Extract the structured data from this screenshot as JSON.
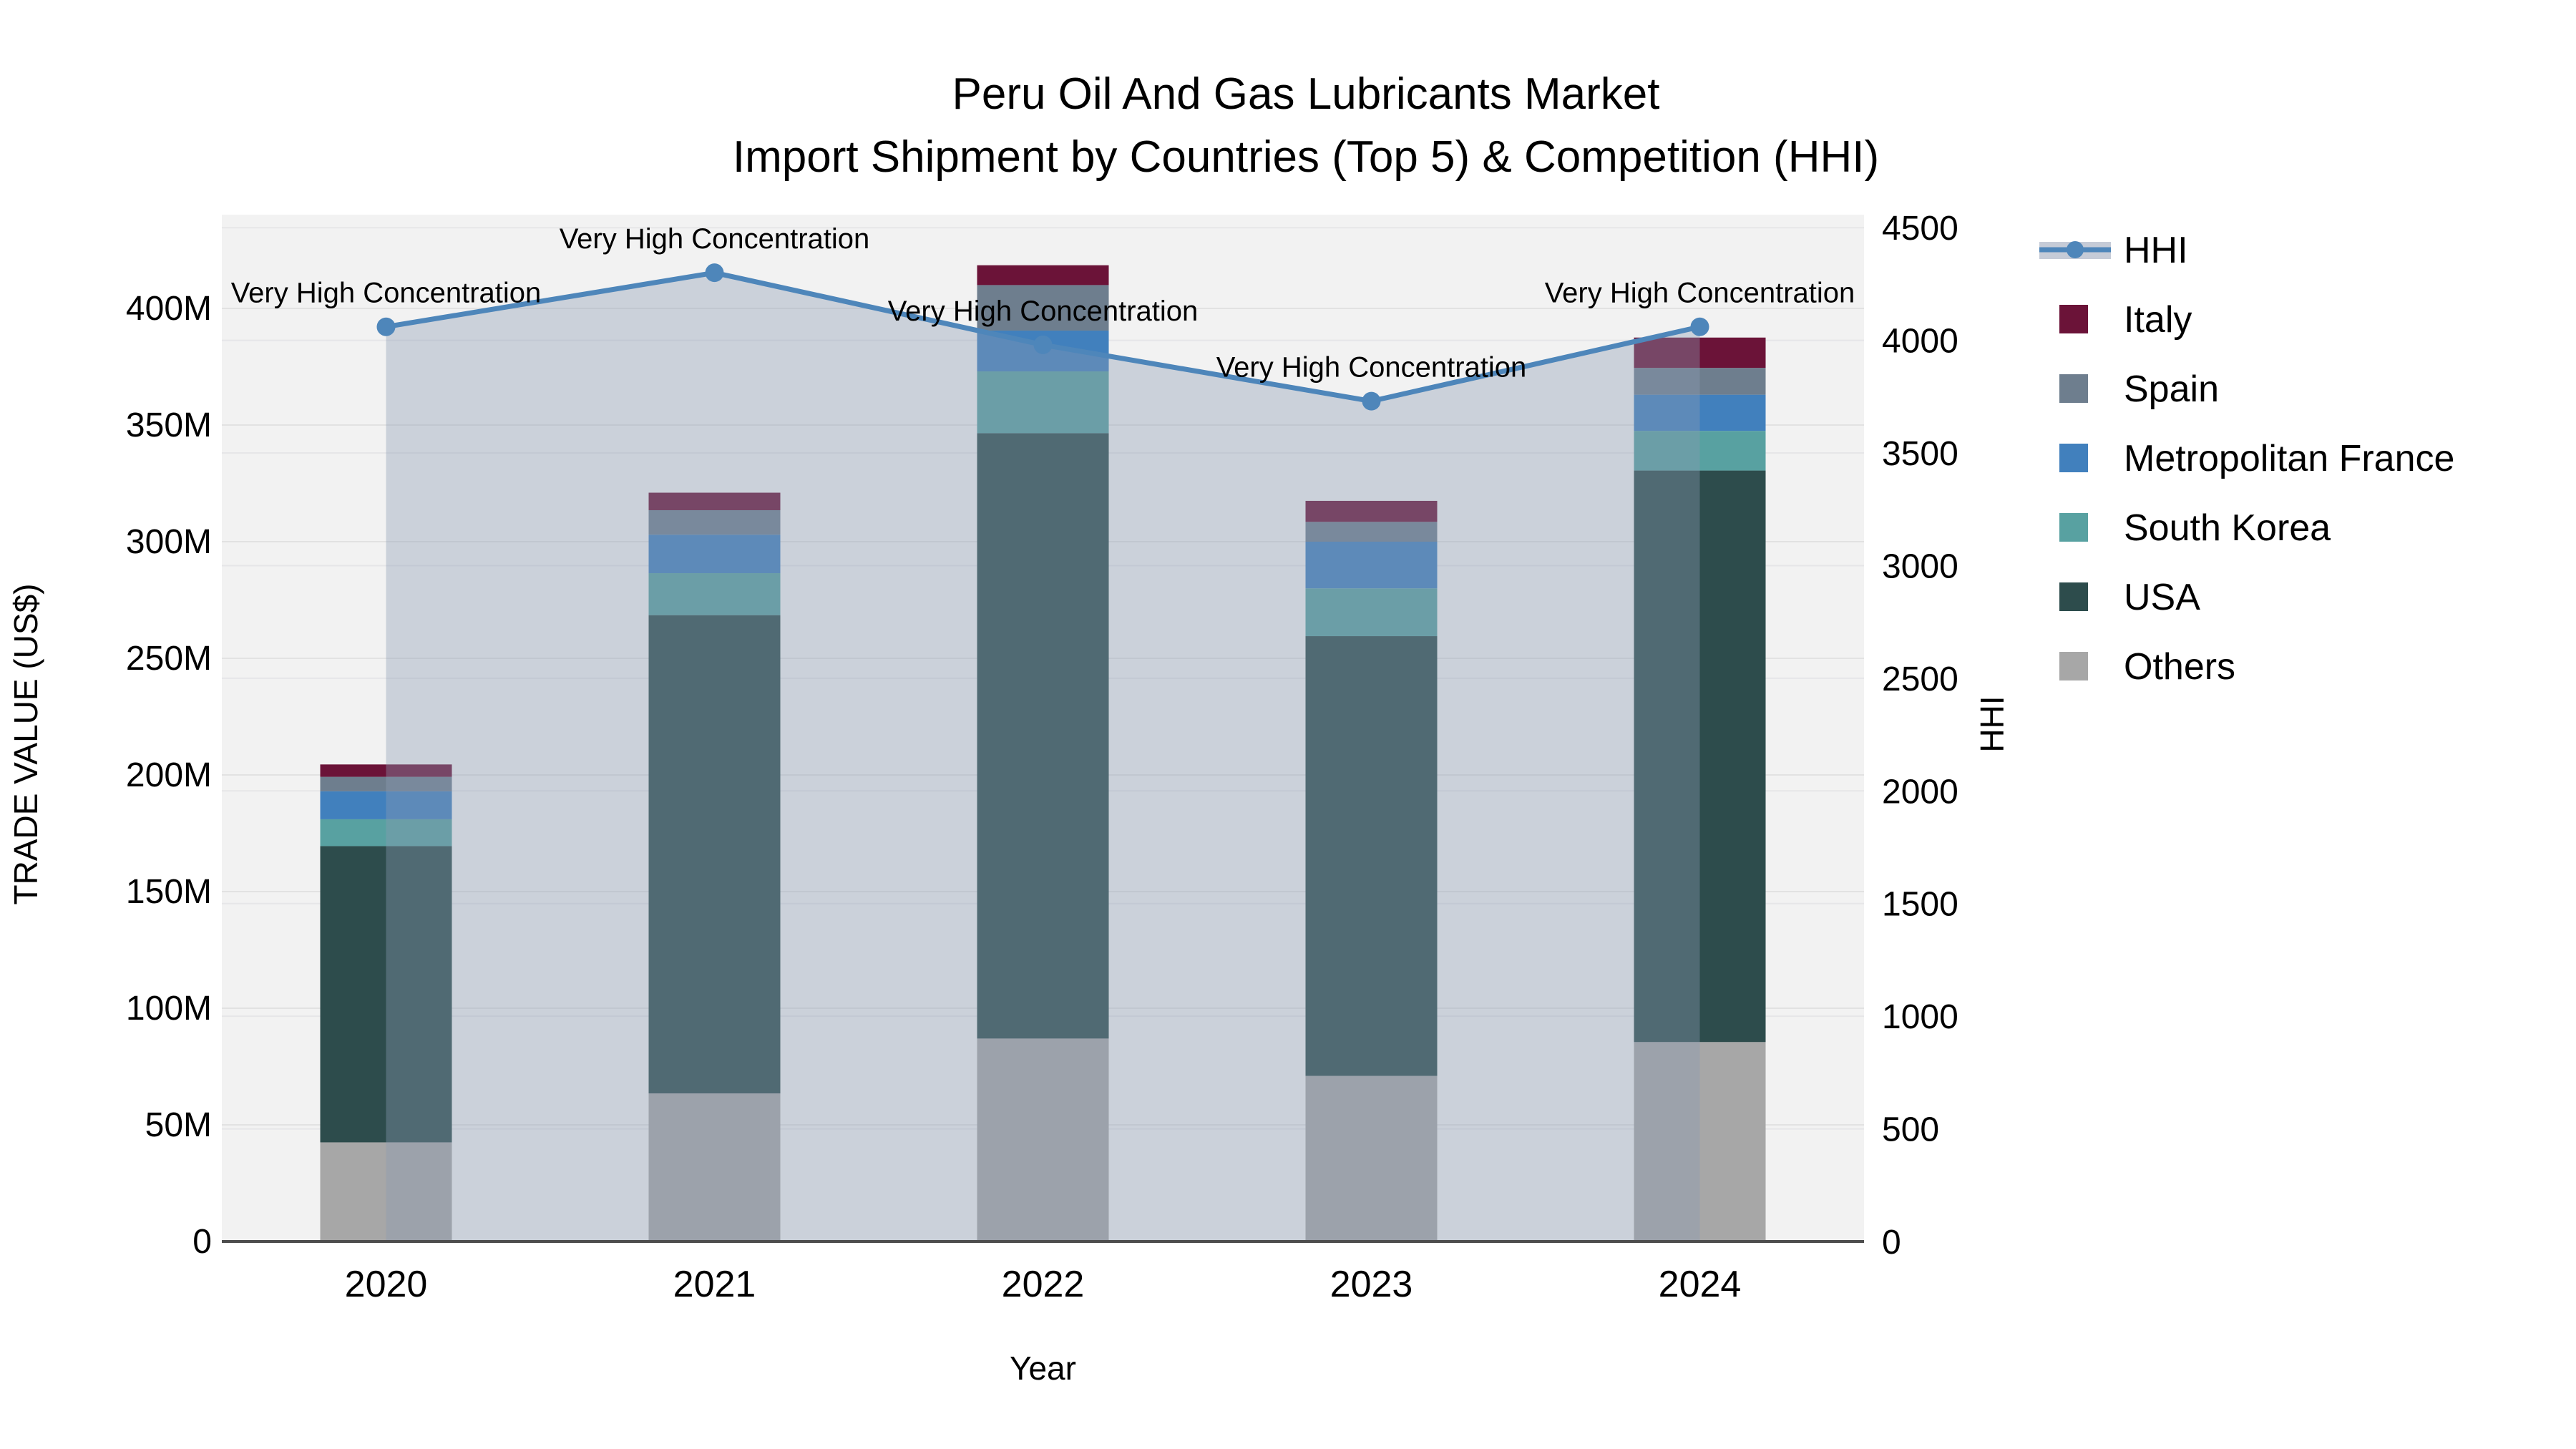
{
  "title": {
    "line1": "Peru Oil And Gas Lubricants Market",
    "line2": "Import Shipment by Countries (Top 5) & Competition (HHI)"
  },
  "axes": {
    "x_title": "Year",
    "y_left_title": "TRADE VALUE (US$)",
    "y_right_title": "HHI",
    "y_left_ticks": [
      {
        "value": 0,
        "label": "0"
      },
      {
        "value": 50,
        "label": "50M"
      },
      {
        "value": 100,
        "label": "100M"
      },
      {
        "value": 150,
        "label": "150M"
      },
      {
        "value": 200,
        "label": "200M"
      },
      {
        "value": 250,
        "label": "250M"
      },
      {
        "value": 300,
        "label": "300M"
      },
      {
        "value": 350,
        "label": "350M"
      },
      {
        "value": 400,
        "label": "400M"
      }
    ],
    "y_right_ticks": [
      0,
      500,
      1000,
      1500,
      2000,
      2500,
      3000,
      3500,
      4000,
      4500
    ]
  },
  "chart_data": {
    "type": "bar",
    "stacked": true,
    "title": "Peru Oil And Gas Lubricants Market — Import Shipment by Countries (Top 5) & Competition (HHI)",
    "xlabel": "Year",
    "ylabel": "TRADE VALUE (US$)",
    "ylabel_right": "HHI",
    "categories": [
      "2020",
      "2021",
      "2022",
      "2023",
      "2024"
    ],
    "y_left_unit": "millions US$",
    "y_left_range_M": [
      0,
      440
    ],
    "y_right_range": [
      0,
      4560
    ],
    "grid": true,
    "legend_position": "right",
    "series": [
      {
        "name": "Others",
        "color": "#a7a7a7",
        "values": [
          42.5,
          63.5,
          87.0,
          71.0,
          85.5
        ]
      },
      {
        "name": "USA",
        "color": "#2d4c4c",
        "values": [
          127.0,
          205.0,
          259.5,
          188.5,
          245.0
        ]
      },
      {
        "name": "South Korea",
        "color": "#58a1a1",
        "values": [
          11.5,
          18.0,
          26.5,
          20.5,
          17.0
        ]
      },
      {
        "name": "Metropolitan France",
        "color": "#4180bd",
        "values": [
          12.0,
          16.5,
          17.5,
          20.0,
          15.5
        ]
      },
      {
        "name": "Spain",
        "color": "#6e7e8e",
        "values": [
          6.2,
          10.5,
          19.5,
          8.5,
          11.5
        ]
      },
      {
        "name": "Italy",
        "color": "#6b1338",
        "values": [
          5.3,
          7.5,
          8.5,
          9.0,
          13.0
        ]
      }
    ],
    "bar_totals_M": [
      204.5,
      321.0,
      418.5,
      317.5,
      387.5
    ],
    "line_series": {
      "name": "HHI",
      "color": "#4e86ba",
      "area_color": "rgba(140,155,180,0.38)",
      "values": [
        4060,
        4300,
        3980,
        3730,
        4060
      ],
      "point_annotations": [
        "Very High Concentration",
        "Very High Concentration",
        "Very High Concentration",
        "Very High Concentration",
        "Very High Concentration"
      ]
    },
    "legend_order_top_to_bottom": [
      "HHI",
      "Italy",
      "Spain",
      "Metropolitan France",
      "South Korea",
      "USA",
      "Others"
    ]
  }
}
